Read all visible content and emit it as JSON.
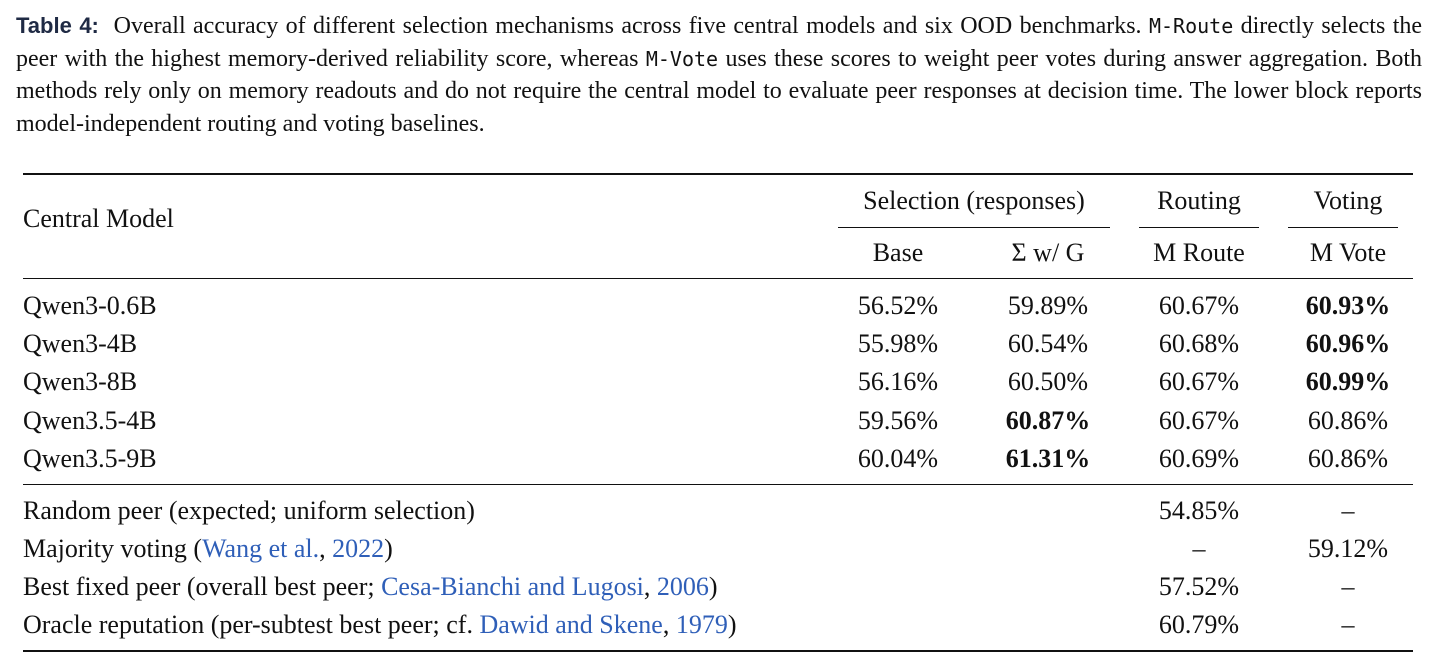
{
  "caption": {
    "label": "Table 4:",
    "seg1": "Overall accuracy of different selection mechanisms across five central models and six OOD benchmarks.",
    "code1": "M-Route",
    "seg2": "directly selects the peer with the highest memory-derived reliability score, whereas",
    "code2": "M-Vote",
    "seg3": "uses these scores to weight peer votes during answer aggregation. Both methods rely only on memory readouts and do not require the central model to evaluate peer responses at decision time. The lower block reports model-independent routing and voting baselines."
  },
  "header": {
    "central_model": "Central Model",
    "group_selection": "Selection (responses)",
    "group_routing": "Routing",
    "group_voting": "Voting",
    "col_base": "Base",
    "col_sigma": "Σ w/ G",
    "col_mroute": "M Route",
    "col_mvote": "M Vote"
  },
  "rows": [
    {
      "model": "Qwen3-0.6B",
      "base": "56.52%",
      "sigma": "59.89%",
      "mroute": "60.67%",
      "mvote": "60.93%",
      "bold": "mvote"
    },
    {
      "model": "Qwen3-4B",
      "base": "55.98%",
      "sigma": "60.54%",
      "mroute": "60.68%",
      "mvote": "60.96%",
      "bold": "mvote"
    },
    {
      "model": "Qwen3-8B",
      "base": "56.16%",
      "sigma": "60.50%",
      "mroute": "60.67%",
      "mvote": "60.99%",
      "bold": "mvote"
    },
    {
      "model": "Qwen3.5-4B",
      "base": "59.56%",
      "sigma": "60.87%",
      "mroute": "60.67%",
      "mvote": "60.86%",
      "bold": "sigma"
    },
    {
      "model": "Qwen3.5-9B",
      "base": "60.04%",
      "sigma": "61.31%",
      "mroute": "60.69%",
      "mvote": "60.86%",
      "bold": "sigma"
    }
  ],
  "baselines": [
    {
      "pre": "Random peer (expected; uniform selection)",
      "cite_text": "",
      "sep": "",
      "year": "",
      "post": "",
      "mroute": "54.85%",
      "mvote": "–"
    },
    {
      "pre": "Majority voting (",
      "cite_text": "Wang et al.",
      "sep": ", ",
      "year": "2022",
      "post": ")",
      "mroute": "–",
      "mvote": "59.12%"
    },
    {
      "pre": "Best fixed peer (overall best peer; ",
      "cite_text": "Cesa-Bianchi and Lugosi",
      "sep": ", ",
      "year": "2006",
      "post": ")",
      "mroute": "57.52%",
      "mvote": "–"
    },
    {
      "pre": "Oracle reputation (per-subtest best peer; cf. ",
      "cite_text": "Dawid and Skene",
      "sep": ", ",
      "year": "1979",
      "post": ")",
      "mroute": "60.79%",
      "mvote": "–"
    }
  ]
}
